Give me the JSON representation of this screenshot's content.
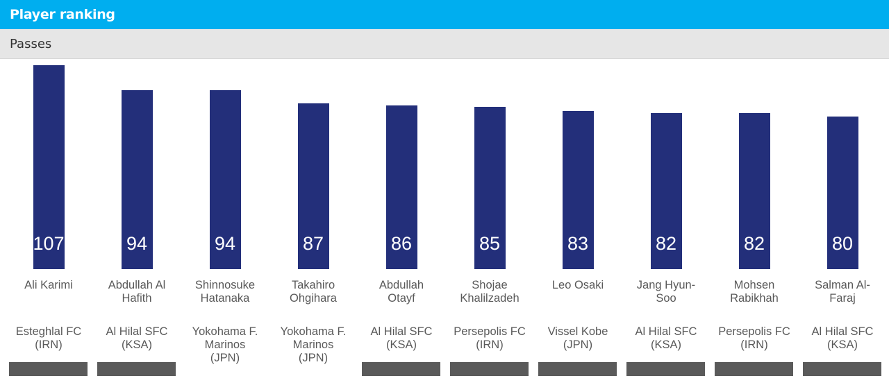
{
  "header": {
    "title": "Player ranking"
  },
  "section": {
    "title": "Passes"
  },
  "colors": {
    "header_bg": "#00AEEF",
    "bar": "#232F7A",
    "value_text": "#ffffff",
    "label_text": "#595959",
    "footer_block": "#5a5a5a"
  },
  "chart_data": {
    "type": "bar",
    "title": "Passes",
    "xlabel": "",
    "ylabel": "",
    "ylim": [
      0,
      107
    ],
    "grid": false,
    "legend": "none",
    "categories": [
      "Ali Karimi",
      "Abdullah Al Hafith",
      "Shinnosuke Hatanaka",
      "Takahiro Ohgihara",
      "Abdullah Otayf",
      "Shojae Khalilzadeh",
      "Leo Osaki",
      "Jang Hyun-Soo",
      "Mohsen Rabikhah",
      "Salman Al-Faraj"
    ],
    "player_lines": [
      [
        "Ali Karimi"
      ],
      [
        "Abdullah Al",
        "Hafith"
      ],
      [
        "Shinnosuke",
        "Hatanaka"
      ],
      [
        "Takahiro",
        "Ohgihara"
      ],
      [
        "Abdullah",
        "Otayf"
      ],
      [
        "Shojae",
        "Khalilzadeh"
      ],
      [
        "Leo Osaki"
      ],
      [
        "Jang Hyun-",
        "Soo"
      ],
      [
        "Mohsen",
        "Rabikhah"
      ],
      [
        "Salman Al-",
        "Faraj"
      ]
    ],
    "team_lines": [
      [
        "Esteghlal FC",
        "(IRN)"
      ],
      [
        "Al Hilal SFC",
        "(KSA)"
      ],
      [
        "Yokohama F.",
        "Marinos",
        "(JPN)"
      ],
      [
        "Yokohama F.",
        "Marinos",
        "(JPN)"
      ],
      [
        "Al Hilal SFC",
        "(KSA)"
      ],
      [
        "Persepolis FC",
        "(IRN)"
      ],
      [
        "Vissel Kobe",
        "(JPN)"
      ],
      [
        "Al Hilal SFC",
        "(KSA)"
      ],
      [
        "Persepolis FC",
        "(IRN)"
      ],
      [
        "Al Hilal SFC",
        "(KSA)"
      ]
    ],
    "values": [
      107,
      94,
      94,
      87,
      86,
      85,
      83,
      82,
      82,
      80
    ],
    "footer_blocks": [
      true,
      true,
      false,
      false,
      true,
      true,
      true,
      true,
      true,
      true
    ]
  }
}
